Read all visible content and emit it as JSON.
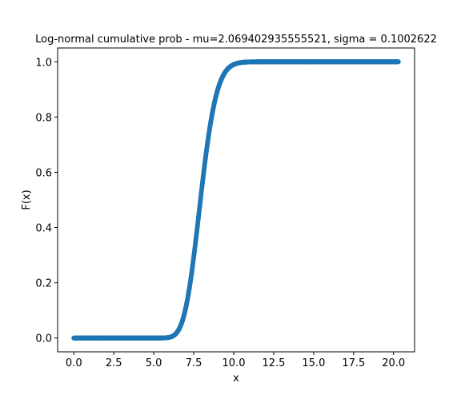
{
  "chart_data": {
    "type": "scatter",
    "title": "Log-normal cumulative prob - mu=2.069402935555521, sigma = 0.1002622",
    "xlabel": "x",
    "ylabel": "F(x)",
    "mu": 2.069402935555521,
    "sigma": 0.1002622,
    "x_range": [
      0.0,
      20.3
    ],
    "xlim": [
      -1.015,
      21.315
    ],
    "ylim": [
      -0.05,
      1.05
    ],
    "xticks": [
      0.0,
      2.5,
      5.0,
      7.5,
      10.0,
      12.5,
      15.0,
      17.5,
      20.0
    ],
    "xtick_labels": [
      "0.0",
      "2.5",
      "5.0",
      "7.5",
      "10.0",
      "12.5",
      "15.0",
      "17.5",
      "20.0"
    ],
    "yticks": [
      0.0,
      0.2,
      0.4,
      0.6,
      0.8,
      1.0
    ],
    "ytick_labels": [
      "0.0",
      "0.2",
      "0.4",
      "0.6",
      "0.8",
      "1.0"
    ],
    "marker_color": "#1f77b4",
    "grid": false,
    "legend": "none"
  }
}
